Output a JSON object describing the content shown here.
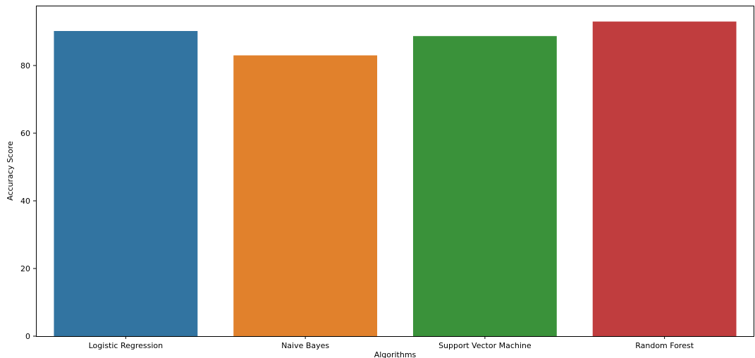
{
  "chart_data": {
    "type": "bar",
    "title": "",
    "xlabel": "Algorithms",
    "ylabel": "Accuracy Score",
    "categories": [
      "Logistic Regression",
      "Naive Bayes",
      "Support Vector Machine",
      "Random Forest"
    ],
    "values": [
      90.2,
      83.0,
      88.7,
      93.0
    ],
    "colors": [
      "#3274a1",
      "#e1812c",
      "#3a923a",
      "#c03d3e"
    ],
    "yticks": [
      0,
      20,
      40,
      60,
      80
    ],
    "ylim": [
      0,
      97.7
    ],
    "grid": false,
    "legend": "none"
  }
}
